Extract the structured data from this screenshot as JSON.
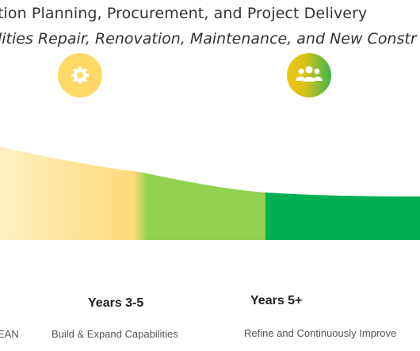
{
  "header": {
    "title_line1": "tion Planning, Procurement, and Project Delivery",
    "title_line2": "lities Repair, Renovation, Maintenance, and New Constr"
  },
  "icons": [
    {
      "name": "gear-icon",
      "color": "#ffd966"
    },
    {
      "name": "people-group-icon",
      "color_from": "#f1c40f",
      "color_to": "#3fb44a"
    }
  ],
  "phases": [
    {
      "year": "",
      "description": "EAN",
      "color": "#fde29a"
    },
    {
      "year": "Years 3-5",
      "description": "Build & Expand Capabilities",
      "color": "#92d050"
    },
    {
      "year": "Years 5+",
      "description": "Refine and Continuously Improve",
      "color": "#00b050"
    }
  ]
}
